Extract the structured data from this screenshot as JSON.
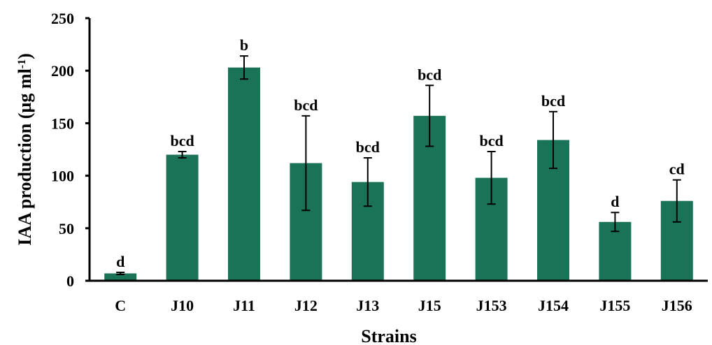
{
  "chart_data": {
    "type": "bar",
    "title": "",
    "xlabel": "Strains",
    "ylabel_main": "IAA production (µg ml",
    "ylabel_sup": "-1",
    "ylabel_close": ")",
    "ylim": [
      0,
      250
    ],
    "yticks": [
      0,
      50,
      100,
      150,
      200,
      250
    ],
    "grid": false,
    "legend": "none",
    "bar_color": "#1a7257",
    "categories": [
      "C",
      "J10",
      "J11",
      "J12",
      "J13",
      "J15",
      "J153",
      "J154",
      "J155",
      "J156"
    ],
    "values": [
      7,
      120,
      203,
      112,
      94,
      157,
      98,
      134,
      56,
      76
    ],
    "errors": [
      1,
      3,
      11,
      45,
      23,
      29,
      25,
      27,
      9,
      20
    ],
    "significance": [
      "d",
      "bcd",
      "b",
      "bcd",
      "bcd",
      "bcd",
      "bcd",
      "bcd",
      "d",
      "cd"
    ]
  }
}
